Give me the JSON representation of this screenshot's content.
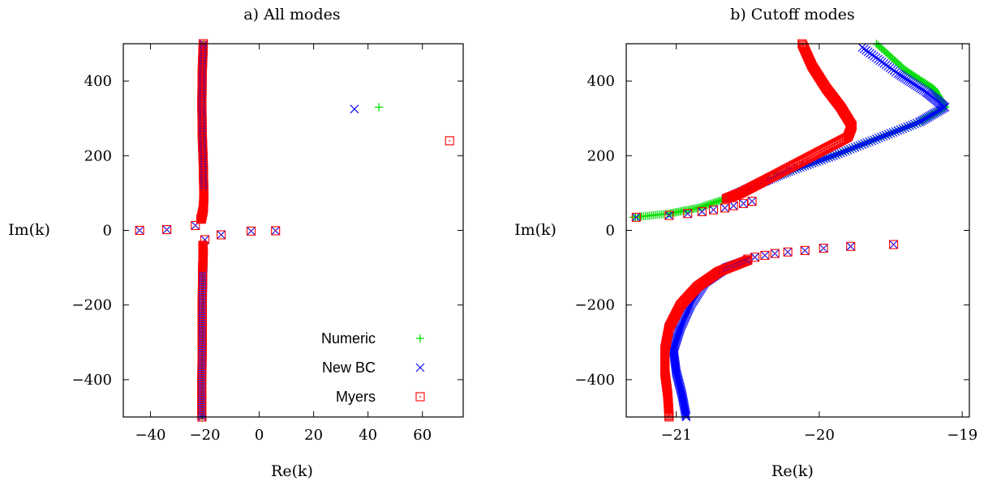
{
  "chart_data": [
    {
      "type": "scatter",
      "title": "a) All modes",
      "xlabel": "Re(k)",
      "ylabel": "Im(k)",
      "xlim": [
        -50,
        75
      ],
      "ylim": [
        -500,
        500
      ],
      "xticks": [
        "−40",
        "−20",
        "0",
        "20",
        "40",
        "60"
      ],
      "xtick_values": [
        -40,
        -20,
        0,
        20,
        40,
        60
      ],
      "yticks": [
        "−400",
        "−200",
        "0",
        "200",
        "400"
      ],
      "ytick_values": [
        -400,
        -200,
        0,
        200,
        400
      ],
      "legend_position": "bottom-right",
      "series": [
        {
          "name": "Numeric",
          "marker": "plus",
          "color": "#00dd00",
          "isolated": [
            [
              44,
              330
            ]
          ],
          "branches": [
            [
              [
                -20.4,
                500
              ],
              [
                -20.9,
                420
              ],
              [
                -21.0,
                340
              ],
              [
                -20.9,
                260
              ],
              [
                -20.5,
                180
              ],
              [
                -20.3,
                100
              ],
              [
                -20.5,
                60
              ],
              [
                -21.3,
                30
              ]
            ],
            [
              [
                -20.7,
                -40
              ],
              [
                -20.5,
                -60
              ],
              [
                -20.6,
                -100
              ],
              [
                -20.8,
                -200
              ],
              [
                -20.9,
                -300
              ],
              [
                -21.0,
                -400
              ],
              [
                -21.0,
                -500
              ]
            ]
          ]
        },
        {
          "name": "New BC",
          "marker": "x",
          "color": "#0000ff",
          "isolated": [
            [
              35,
              325
            ],
            [
              -44,
              0
            ],
            [
              -34,
              2
            ],
            [
              -23.5,
              13
            ],
            [
              -21.5,
              30
            ],
            [
              -20,
              -25
            ],
            [
              -14,
              -12
            ],
            [
              -3,
              -2
            ],
            [
              6,
              -1
            ]
          ],
          "branches": [
            [
              [
                -20.4,
                500
              ],
              [
                -20.9,
                420
              ],
              [
                -21.0,
                340
              ],
              [
                -20.9,
                260
              ],
              [
                -20.5,
                180
              ],
              [
                -20.3,
                100
              ],
              [
                -20.5,
                60
              ],
              [
                -21.3,
                30
              ]
            ],
            [
              [
                -20.7,
                -40
              ],
              [
                -20.5,
                -60
              ],
              [
                -20.6,
                -100
              ],
              [
                -20.8,
                -200
              ],
              [
                -20.9,
                -300
              ],
              [
                -21.0,
                -400
              ],
              [
                -21.0,
                -500
              ]
            ]
          ]
        },
        {
          "name": "Myers",
          "marker": "square",
          "color": "#ff0000",
          "isolated": [
            [
              70,
              240
            ],
            [
              -44,
              0
            ],
            [
              -34,
              2
            ],
            [
              -23.5,
              13
            ],
            [
              -21.5,
              30
            ],
            [
              -20,
              -25
            ],
            [
              -14,
              -12
            ],
            [
              -3,
              -2
            ],
            [
              6,
              -1
            ]
          ],
          "branches": [
            [
              [
                -20.6,
                500
              ],
              [
                -21.0,
                420
              ],
              [
                -21.1,
                340
              ],
              [
                -21.0,
                260
              ],
              [
                -20.6,
                180
              ],
              [
                -20.4,
                100
              ],
              [
                -20.5,
                60
              ],
              [
                -21.3,
                30
              ]
            ],
            [
              [
                -20.7,
                -40
              ],
              [
                -20.6,
                -60
              ],
              [
                -20.8,
                -100
              ],
              [
                -21.0,
                -200
              ],
              [
                -21.0,
                -300
              ],
              [
                -21.1,
                -400
              ],
              [
                -21.1,
                -500
              ]
            ]
          ]
        }
      ]
    },
    {
      "type": "scatter",
      "title": "b) Cutoff modes",
      "xlabel": "Re(k)",
      "ylabel": "Im(k)",
      "xlim": [
        -21.35,
        -18.95
      ],
      "ylim": [
        -500,
        500
      ],
      "xticks": [
        "−21",
        "−20",
        "−19"
      ],
      "xtick_values": [
        -21,
        -20,
        -19
      ],
      "yticks": [
        "−400",
        "−200",
        "0",
        "200",
        "400"
      ],
      "ytick_values": [
        -400,
        -200,
        0,
        200,
        400
      ],
      "series": [
        {
          "name": "Numeric",
          "marker": "plus",
          "color": "#00dd00",
          "isolated": [],
          "branches": [
            [
              [
                -19.6,
                500
              ],
              [
                -19.4,
                430
              ],
              [
                -19.2,
                380
              ],
              [
                -19.12,
                330
              ],
              [
                -19.3,
                290
              ],
              [
                -19.6,
                245
              ],
              [
                -19.9,
                200
              ],
              [
                -20.2,
                160
              ],
              [
                -20.45,
                120
              ],
              [
                -20.65,
                85
              ],
              [
                -20.85,
                60
              ],
              [
                -21.05,
                45
              ],
              [
                -21.3,
                35
              ]
            ]
          ]
        },
        {
          "name": "New BC",
          "marker": "x",
          "color": "#0000ff",
          "isolated": [
            [
              -21.28,
              35
            ],
            [
              -21.05,
              40
            ],
            [
              -20.92,
              45
            ],
            [
              -20.82,
              50
            ],
            [
              -20.74,
              55
            ],
            [
              -20.66,
              60
            ],
            [
              -20.6,
              66
            ],
            [
              -20.53,
              72
            ],
            [
              -20.47,
              78
            ],
            [
              -19.48,
              -38
            ],
            [
              -19.78,
              -43
            ],
            [
              -19.97,
              -48
            ],
            [
              -20.1,
              -54
            ],
            [
              -20.22,
              -58
            ],
            [
              -20.31,
              -62
            ],
            [
              -20.38,
              -67
            ],
            [
              -20.45,
              -72
            ],
            [
              -20.5,
              -77
            ]
          ],
          "branches": [
            [
              [
                -19.7,
                490
              ],
              [
                -19.45,
                420
              ],
              [
                -19.25,
                370
              ],
              [
                -19.12,
                330
              ],
              [
                -19.3,
                290
              ],
              [
                -19.6,
                245
              ],
              [
                -19.9,
                200
              ],
              [
                -20.2,
                160
              ],
              [
                -20.45,
                120
              ],
              [
                -20.65,
                85
              ]
            ],
            [
              [
                -20.5,
                -80
              ],
              [
                -20.65,
                -100
              ],
              [
                -20.8,
                -140
              ],
              [
                -20.9,
                -200
              ],
              [
                -20.97,
                -260
              ],
              [
                -21.02,
                -320
              ],
              [
                -21.0,
                -380
              ],
              [
                -20.96,
                -440
              ],
              [
                -20.93,
                -500
              ]
            ]
          ]
        },
        {
          "name": "Myers",
          "marker": "square",
          "color": "#ff0000",
          "isolated": [
            [
              -21.28,
              35
            ],
            [
              -21.05,
              40
            ],
            [
              -20.92,
              45
            ],
            [
              -20.82,
              50
            ],
            [
              -20.74,
              55
            ],
            [
              -20.66,
              60
            ],
            [
              -20.6,
              66
            ],
            [
              -20.53,
              72
            ],
            [
              -20.47,
              78
            ],
            [
              -19.48,
              -38
            ],
            [
              -19.78,
              -43
            ],
            [
              -19.97,
              -48
            ],
            [
              -20.1,
              -54
            ],
            [
              -20.22,
              -58
            ],
            [
              -20.31,
              -62
            ],
            [
              -20.38,
              -67
            ],
            [
              -20.45,
              -72
            ],
            [
              -20.5,
              -77
            ]
          ],
          "branches": [
            [
              [
                -20.12,
                500
              ],
              [
                -20.05,
                440
              ],
              [
                -19.95,
                380
              ],
              [
                -19.85,
                330
              ],
              [
                -19.77,
                280
              ],
              [
                -19.8,
                250
              ],
              [
                -20.0,
                210
              ],
              [
                -20.2,
                170
              ],
              [
                -20.4,
                130
              ],
              [
                -20.55,
                100
              ],
              [
                -20.65,
                85
              ]
            ],
            [
              [
                -20.5,
                -80
              ],
              [
                -20.7,
                -110
              ],
              [
                -20.85,
                -150
              ],
              [
                -20.97,
                -200
              ],
              [
                -21.05,
                -260
              ],
              [
                -21.08,
                -320
              ],
              [
                -21.08,
                -380
              ],
              [
                -21.06,
                -440
              ],
              [
                -21.05,
                -500
              ]
            ]
          ]
        }
      ]
    }
  ]
}
